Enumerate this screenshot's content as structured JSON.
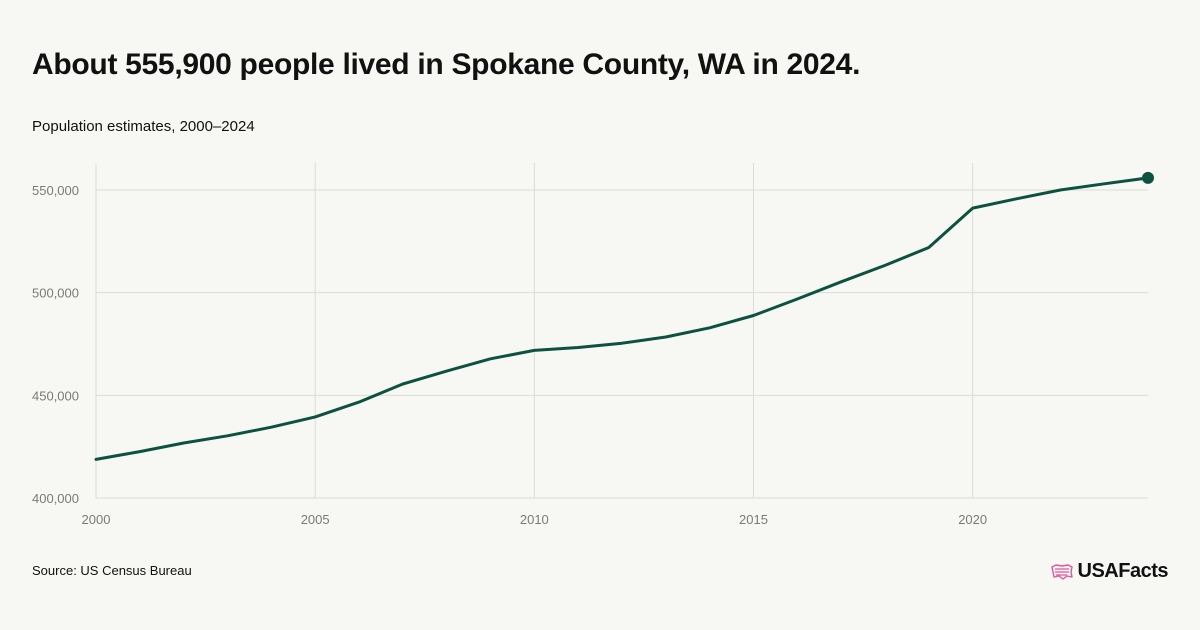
{
  "title": "About 555,900 people lived in Spokane County, WA in 2024.",
  "subtitle": "Population estimates, 2000–2024",
  "source": "Source: US Census Bureau",
  "brand": "USAFacts",
  "colors": {
    "line": "#0d5240",
    "grid": "#dcdcd6",
    "tick_text": "#7a7a76",
    "logo_flag": "#e0569b"
  },
  "chart_data": {
    "type": "line",
    "title": "About 555,900 people lived in Spokane County, WA in 2024.",
    "subtitle": "Population estimates, 2000–2024",
    "x": [
      2000,
      2001,
      2002,
      2003,
      2004,
      2005,
      2006,
      2007,
      2008,
      2009,
      2010,
      2011,
      2012,
      2013,
      2014,
      2015,
      2016,
      2017,
      2018,
      2019,
      2020,
      2021,
      2022,
      2023,
      2024
    ],
    "series": [
      {
        "values": [
          418800,
          422600,
          426800,
          430300,
          434500,
          439500,
          446700,
          455500,
          461800,
          467800,
          471900,
          473300,
          475400,
          478400,
          482900,
          488900,
          496900,
          505300,
          513300,
          522000,
          541200,
          545700,
          550000,
          553000,
          555900
        ]
      }
    ],
    "xlim": [
      2000,
      2024
    ],
    "ylim": [
      400000,
      565000
    ],
    "x_ticks": [
      2000,
      2005,
      2010,
      2015,
      2020
    ],
    "x_tick_labels": [
      "2000",
      "2005",
      "2010",
      "2015",
      "2020"
    ],
    "y_ticks": [
      400000,
      450000,
      500000,
      550000
    ],
    "y_tick_labels": [
      "400,000",
      "450,000",
      "500,000",
      "550,000"
    ],
    "grid": true,
    "endpoint_marker": true
  }
}
